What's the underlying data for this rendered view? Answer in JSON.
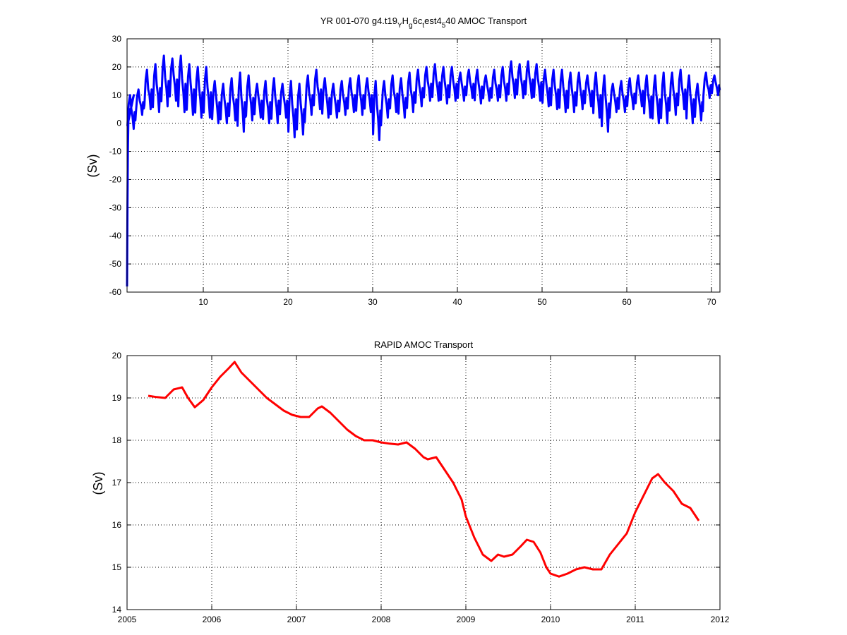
{
  "chart_data": [
    {
      "type": "line",
      "title": {
        "main": "YR 001-070 g4.t19",
        "sub1": "Y",
        "mid1": "H",
        "sub2": "g",
        "mid2": "6c",
        "sub3": "t",
        "mid3": "est4",
        "sub4": "5",
        "end": "40 AMOC Transport"
      },
      "ylabel": "(Sv)",
      "xlabel": "",
      "xlim": [
        1,
        71
      ],
      "ylim": [
        -60,
        30
      ],
      "xticks": [
        10,
        20,
        30,
        40,
        50,
        60,
        70
      ],
      "yticks": [
        -60,
        -50,
        -40,
        -30,
        -20,
        -10,
        0,
        10,
        20,
        30
      ],
      "grid": true,
      "color": "#0000ff",
      "series": [
        {
          "x": [
            1.0,
            1.05,
            1.1,
            1.15,
            1.2,
            1.3,
            1.4,
            1.5,
            1.6,
            1.8
          ],
          "y": [
            -58,
            -30,
            -10,
            0,
            3,
            5,
            4,
            6,
            8,
            10
          ],
          "annual": {
            "years": [
              2,
              3,
              4,
              5,
              6,
              7,
              8,
              9,
              10,
              11,
              12,
              13,
              14,
              15,
              16,
              17,
              18,
              19,
              20,
              21,
              22,
              23,
              24,
              25,
              26,
              27,
              28,
              29,
              30,
              31,
              32,
              33,
              34,
              35,
              36,
              37,
              38,
              39,
              40,
              41,
              42,
              43,
              44,
              45,
              46,
              47,
              48,
              49,
              50,
              51,
              52,
              53,
              54,
              55,
              56,
              57,
              58,
              59,
              60,
              61,
              62,
              63,
              64,
              65,
              66,
              67,
              68,
              69,
              70,
              71
            ],
            "max": [
              10,
              12,
              19,
              21,
              24,
              23,
              24,
              21,
              20,
              20,
              15,
              14,
              16,
              18,
              17,
              14,
              15,
              16,
              14,
              15,
              14,
              17,
              19,
              16,
              14,
              15,
              16,
              17,
              16,
              15,
              15,
              17,
              16,
              18,
              19,
              20,
              21,
              20,
              20,
              18,
              19,
              19,
              17,
              19,
              20,
              22,
              21,
              22,
              21,
              19,
              19,
              19,
              18,
              18,
              17,
              18,
              17,
              14,
              15,
              16,
              17,
              17,
              17,
              18,
              18,
              19,
              17,
              14,
              18,
              17
            ],
            "min": [
              -2,
              3,
              5,
              4,
              6,
              8,
              4,
              3,
              2,
              2,
              0,
              0,
              1,
              -3,
              1,
              2,
              0,
              0,
              2,
              -5,
              -4,
              3,
              5,
              2,
              2,
              3,
              4,
              3,
              4,
              -6,
              2,
              4,
              2,
              4,
              6,
              8,
              8,
              7,
              8,
              8,
              9,
              7,
              8,
              8,
              8,
              9,
              9,
              9,
              8,
              6,
              5,
              4,
              4,
              5,
              6,
              2,
              -3,
              4,
              4,
              5,
              6,
              2,
              0,
              0,
              3,
              5,
              0,
              1,
              9,
              10
            ]
          }
        }
      ]
    },
    {
      "type": "line",
      "title": "RAPID AMOC Transport",
      "ylabel": "(Sv)",
      "xlabel": "",
      "xlim": [
        2005,
        2012
      ],
      "ylim": [
        14,
        20
      ],
      "xticks": [
        2005,
        2006,
        2007,
        2008,
        2009,
        2010,
        2011,
        2012
      ],
      "yticks": [
        14,
        15,
        16,
        17,
        18,
        19,
        20
      ],
      "grid": true,
      "color": "#ff0000",
      "series": [
        {
          "x": [
            2005.25,
            2005.35,
            2005.45,
            2005.55,
            2005.65,
            2005.72,
            2005.8,
            2005.9,
            2006.0,
            2006.1,
            2006.2,
            2006.27,
            2006.35,
            2006.45,
            2006.55,
            2006.65,
            2006.75,
            2006.85,
            2006.95,
            2007.05,
            2007.15,
            2007.25,
            2007.3,
            2007.4,
            2007.5,
            2007.6,
            2007.7,
            2007.8,
            2007.9,
            2008.0,
            2008.1,
            2008.2,
            2008.3,
            2008.4,
            2008.5,
            2008.55,
            2008.65,
            2008.75,
            2008.85,
            2008.95,
            2009.0,
            2009.1,
            2009.2,
            2009.3,
            2009.38,
            2009.45,
            2009.55,
            2009.65,
            2009.72,
            2009.8,
            2009.88,
            2009.95,
            2010.0,
            2010.1,
            2010.2,
            2010.3,
            2010.4,
            2010.5,
            2010.6,
            2010.7,
            2010.8,
            2010.9,
            2011.0,
            2011.1,
            2011.2,
            2011.27,
            2011.35,
            2011.45,
            2011.55,
            2011.65,
            2011.75
          ],
          "y": [
            19.05,
            19.02,
            19.0,
            19.2,
            19.25,
            19.0,
            18.78,
            18.95,
            19.25,
            19.5,
            19.7,
            19.85,
            19.6,
            19.4,
            19.2,
            19.0,
            18.85,
            18.7,
            18.6,
            18.55,
            18.55,
            18.75,
            18.8,
            18.65,
            18.45,
            18.25,
            18.1,
            18.0,
            18.0,
            17.95,
            17.92,
            17.9,
            17.95,
            17.8,
            17.6,
            17.55,
            17.6,
            17.3,
            17.0,
            16.6,
            16.2,
            15.7,
            15.3,
            15.15,
            15.3,
            15.25,
            15.3,
            15.5,
            15.65,
            15.6,
            15.35,
            15.0,
            14.85,
            14.78,
            14.85,
            14.95,
            15.0,
            14.95,
            14.95,
            15.3,
            15.55,
            15.8,
            16.3,
            16.7,
            17.1,
            17.2,
            17.0,
            16.8,
            16.5,
            16.4,
            16.1
          ]
        }
      ]
    }
  ]
}
